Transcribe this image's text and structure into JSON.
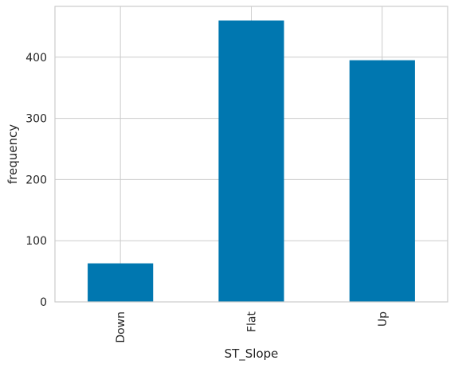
{
  "chart_data": {
    "type": "bar",
    "categories": [
      "Down",
      "Flat",
      "Up"
    ],
    "values": [
      63,
      460,
      395
    ],
    "xlabel": "ST_Slope",
    "ylabel": "frequency",
    "ylim": [
      0,
      483
    ],
    "yticks": [
      0,
      100,
      200,
      300,
      400
    ],
    "grid": true,
    "legend": "none",
    "bar_color": "#0077b0",
    "grid_color": "#cccccc",
    "spine_color": "#cccccc"
  }
}
